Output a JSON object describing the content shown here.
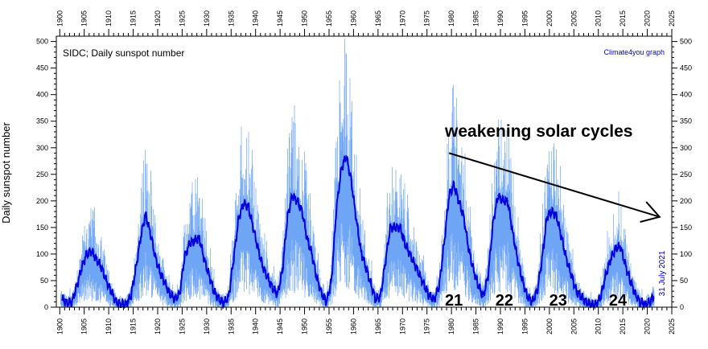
{
  "chart_data": {
    "type": "line",
    "title": "SIDC; Daily sunspot number",
    "credit": "Climate4you graph",
    "date_note": "31 July 2021",
    "ylabel": "Daily sunspot number",
    "xlabel": "",
    "xlim": [
      1899.3,
      2025
    ],
    "ylim": [
      0,
      510
    ],
    "x_ticks": [
      1900,
      1905,
      1910,
      1915,
      1920,
      1925,
      1930,
      1935,
      1940,
      1945,
      1950,
      1955,
      1960,
      1965,
      1970,
      1975,
      1980,
      1985,
      1990,
      1995,
      2000,
      2005,
      2010,
      2015,
      2020,
      2025
    ],
    "y_ticks": [
      0,
      50,
      100,
      150,
      200,
      250,
      300,
      350,
      400,
      450,
      500
    ],
    "grid": false,
    "annotation": "weakening solar cycles",
    "trend_arrow": {
      "from": [
        1979.5,
        290
      ],
      "to": [
        2022.5,
        170
      ]
    },
    "cycle_labels": [
      {
        "label": "21",
        "x": 1980.5,
        "y": 0
      },
      {
        "label": "22",
        "x": 1990.8,
        "y": 0
      },
      {
        "label": "23",
        "x": 2001.8,
        "y": 0
      },
      {
        "label": "24",
        "x": 2014.0,
        "y": 0
      }
    ],
    "colors": {
      "daily": "#6ea5f5",
      "smoothed": "#0000dd"
    },
    "series": [
      {
        "role": "smoothed",
        "x": [
          1900.5,
          1901.5,
          1902.5,
          1903.5,
          1904.5,
          1905.5,
          1906.5,
          1907.5,
          1908.5,
          1909.5,
          1910.5,
          1911.5,
          1912.5,
          1913.5,
          1914.5,
          1915.5,
          1916.5,
          1917.5,
          1918.5,
          1919.5,
          1920.5,
          1921.5,
          1922.5,
          1923.5,
          1924.5,
          1925.5,
          1926.5,
          1927.5,
          1928.5,
          1929.5,
          1930.5,
          1931.5,
          1932.5,
          1933.5,
          1934.5,
          1935.5,
          1936.5,
          1937.5,
          1938.5,
          1939.5,
          1940.5,
          1941.5,
          1942.5,
          1943.5,
          1944.5,
          1945.5,
          1946.5,
          1947.5,
          1948.5,
          1949.5,
          1950.5,
          1951.5,
          1952.5,
          1953.5,
          1954.5,
          1955.5,
          1956.5,
          1957.5,
          1958.5,
          1959.5,
          1960.5,
          1961.5,
          1962.5,
          1963.5,
          1964.5,
          1965.5,
          1966.5,
          1967.5,
          1968.5,
          1969.5,
          1970.5,
          1971.5,
          1972.5,
          1973.5,
          1974.5,
          1975.5,
          1976.5,
          1977.5,
          1978.5,
          1979.5,
          1980.5,
          1981.5,
          1982.5,
          1983.5,
          1984.5,
          1985.5,
          1986.5,
          1987.5,
          1988.5,
          1989.5,
          1990.5,
          1991.5,
          1992.5,
          1993.5,
          1994.5,
          1995.5,
          1996.5,
          1997.5,
          1998.5,
          1999.5,
          2000.5,
          2001.5,
          2002.5,
          2003.5,
          2004.5,
          2005.5,
          2006.5,
          2007.5,
          2008.5,
          2009.5,
          2010.5,
          2011.5,
          2012.5,
          2013.5,
          2014.5,
          2015.5,
          2016.5,
          2017.5,
          2018.5,
          2019.5,
          2020.5,
          2021.3
        ],
        "values": [
          15,
          8,
          10,
          40,
          75,
          100,
          105,
          90,
          75,
          50,
          30,
          10,
          5,
          5,
          20,
          70,
          130,
          175,
          140,
          95,
          65,
          45,
          25,
          15,
          25,
          95,
          120,
          125,
          130,
          90,
          60,
          30,
          15,
          8,
          20,
          90,
          165,
          195,
          190,
          150,
          110,
          75,
          55,
          35,
          25,
          70,
          170,
          210,
          200,
          180,
          130,
          100,
          55,
          25,
          10,
          50,
          185,
          260,
          285,
          240,
          170,
          105,
          75,
          45,
          15,
          20,
          85,
          150,
          150,
          150,
          120,
          100,
          80,
          60,
          40,
          20,
          15,
          40,
          120,
          210,
          230,
          200,
          170,
          110,
          70,
          40,
          20,
          60,
          160,
          210,
          200,
          200,
          140,
          90,
          50,
          20,
          10,
          30,
          90,
          170,
          180,
          170,
          130,
          90,
          60,
          30,
          20,
          10,
          5,
          5,
          20,
          60,
          90,
          110,
          115,
          80,
          50,
          25,
          10,
          5,
          10,
          20
        ]
      }
    ]
  }
}
